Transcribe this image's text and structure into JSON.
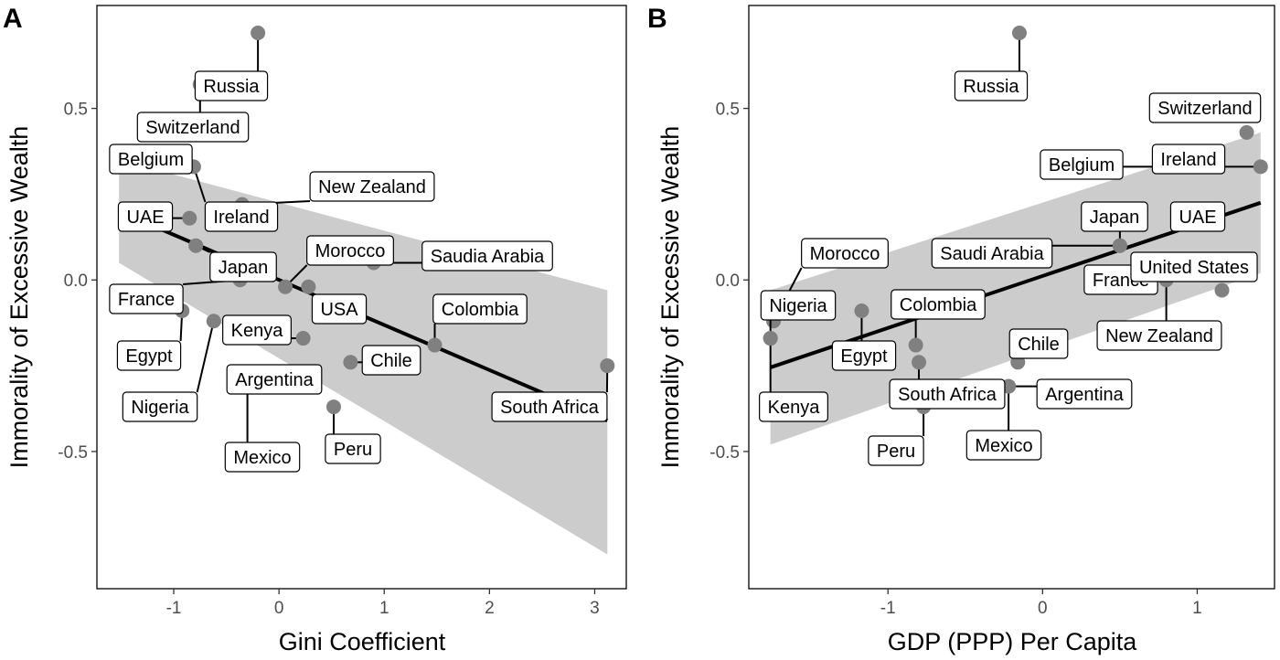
{
  "chart_data": [
    {
      "type": "scatter",
      "panel": "A",
      "xlabel": "Gini Coefficient",
      "ylabel": "Immorality of Excessive Wealth",
      "xlim": [
        -1.73,
        3.3
      ],
      "ylim": [
        -0.9,
        0.8
      ],
      "x_ticks": [
        -1,
        0,
        1,
        2,
        3
      ],
      "y_ticks": [
        0.5,
        0.0,
        -0.5
      ],
      "x_tick_labels": [
        "-1",
        "0",
        "1",
        "2",
        "3"
      ],
      "y_tick_labels": [
        "0.5",
        "0.0",
        "-0.5"
      ],
      "points": [
        {
          "label": "Russia",
          "x": -0.2,
          "y": 0.72
        },
        {
          "label": "Switzerland",
          "x": -0.75,
          "y": 0.57
        },
        {
          "label": "Belgium",
          "x": -1.52,
          "y": 0.33
        },
        {
          "label": "Ireland",
          "x": -0.81,
          "y": 0.33
        },
        {
          "label": "New Zealand",
          "x": -0.35,
          "y": 0.22
        },
        {
          "label": "UAE",
          "x": -0.85,
          "y": 0.18
        },
        {
          "label": "Japan",
          "x": -0.79,
          "y": 0.1
        },
        {
          "label": "Morocco",
          "x": 0.06,
          "y": -0.02
        },
        {
          "label": "Saudia Arabia",
          "x": 0.9,
          "y": 0.05
        },
        {
          "label": "France",
          "x": -0.37,
          "y": 0.0
        },
        {
          "label": "USA",
          "x": 0.28,
          "y": -0.02
        },
        {
          "label": "Egypt",
          "x": -0.92,
          "y": -0.09
        },
        {
          "label": "Kenya",
          "x": 0.23,
          "y": -0.17
        },
        {
          "label": "Colombia",
          "x": 1.48,
          "y": -0.19
        },
        {
          "label": "Chile",
          "x": 0.68,
          "y": -0.24
        },
        {
          "label": "Nigeria",
          "x": -0.62,
          "y": -0.12
        },
        {
          "label": "Argentina",
          "x": 0.3,
          "y": -0.31
        },
        {
          "label": "South Africa",
          "x": 3.12,
          "y": -0.25
        },
        {
          "label": "Mexico",
          "x": -0.3,
          "y": -0.31
        },
        {
          "label": "Peru",
          "x": 0.52,
          "y": -0.37
        }
      ],
      "regression": {
        "x": [
          -1.52,
          3.12
        ],
        "y": [
          0.2,
          -0.41
        ]
      },
      "ci_band": {
        "x": [
          -1.52,
          3.12
        ],
        "upper": [
          0.35,
          -0.03
        ],
        "lower": [
          0.05,
          -0.8
        ]
      }
    },
    {
      "type": "scatter",
      "panel": "B",
      "xlabel": "GDP (PPP) Per Capita",
      "ylabel": "Immorality of Excessive Wealth",
      "xlim": [
        -1.9,
        1.5
      ],
      "ylim": [
        -0.9,
        0.8
      ],
      "x_ticks": [
        -1,
        0,
        1
      ],
      "y_ticks": [
        0.5,
        0.0,
        -0.5
      ],
      "x_tick_labels": [
        "-1",
        "0",
        "1"
      ],
      "y_tick_labels": [
        "0.5",
        "0.0",
        "-0.5"
      ],
      "points": [
        {
          "label": "Russia",
          "x": -0.15,
          "y": 0.72
        },
        {
          "label": "Switzerland",
          "x": 1.32,
          "y": 0.43
        },
        {
          "label": "Ireland",
          "x": 1.41,
          "y": 0.33
        },
        {
          "label": "Belgium",
          "x": 0.82,
          "y": 0.33
        },
        {
          "label": "Japan",
          "x": 0.5,
          "y": 0.1
        },
        {
          "label": "UAE",
          "x": 0.99,
          "y": 0.18
        },
        {
          "label": "Saudi Arabia",
          "x": 0.5,
          "y": 0.1
        },
        {
          "label": "France",
          "x": 0.66,
          "y": 0.01
        },
        {
          "label": "United States",
          "x": 1.16,
          "y": -0.03
        },
        {
          "label": "New Zealand",
          "x": 0.8,
          "y": 0.0
        },
        {
          "label": "Morocco",
          "x": -1.74,
          "y": -0.12
        },
        {
          "label": "Nigeria",
          "x": -1.76,
          "y": -0.17
        },
        {
          "label": "Colombia",
          "x": -0.82,
          "y": -0.19
        },
        {
          "label": "Egypt",
          "x": -1.17,
          "y": -0.09
        },
        {
          "label": "Chile",
          "x": -0.16,
          "y": -0.24
        },
        {
          "label": "Kenya",
          "x": -1.76,
          "y": -0.17
        },
        {
          "label": "South Africa",
          "x": -0.8,
          "y": -0.24
        },
        {
          "label": "Argentina",
          "x": -0.22,
          "y": -0.31
        },
        {
          "label": "Mexico",
          "x": -0.22,
          "y": -0.31
        },
        {
          "label": "Peru",
          "x": -0.77,
          "y": -0.37
        }
      ],
      "regression": {
        "x": [
          -1.76,
          1.41
        ],
        "y": [
          -0.255,
          0.225
        ]
      },
      "ci_band": {
        "x": [
          -1.76,
          1.41
        ],
        "upper": [
          -0.03,
          0.43
        ],
        "lower": [
          -0.48,
          0.02
        ]
      }
    }
  ],
  "colors": {
    "point": "#808080",
    "band": "#cccccc",
    "line": "#000000",
    "panel_bg": "#ffffff"
  }
}
